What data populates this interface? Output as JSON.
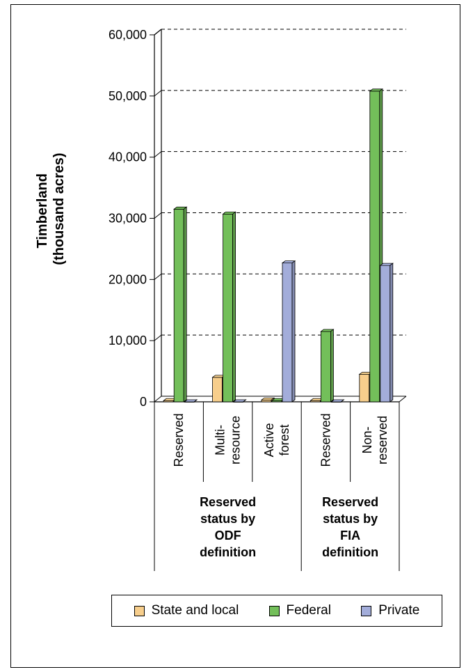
{
  "chart_data": {
    "type": "bar",
    "ylabel_line1": "Timberland",
    "ylabel_line2": "(thousand acres)",
    "ylim": [
      0,
      60000
    ],
    "yticks": [
      "0",
      "10,000",
      "20,000",
      "30,000",
      "40,000",
      "50,000",
      "60,000"
    ],
    "grid": true,
    "categories": [
      {
        "lines": [
          "Reserved"
        ]
      },
      {
        "lines": [
          "Multi-",
          "resource"
        ]
      },
      {
        "lines": [
          "Active",
          "forest"
        ]
      },
      {
        "lines": [
          "Reserved"
        ]
      },
      {
        "lines": [
          "Non-",
          "reserved"
        ]
      }
    ],
    "groups": [
      {
        "lines": [
          "Reserved",
          "status by",
          "ODF",
          "definition"
        ],
        "span": [
          0,
          2
        ]
      },
      {
        "lines": [
          "Reserved",
          "status by",
          "FIA",
          "definition"
        ],
        "span": [
          3,
          4
        ]
      }
    ],
    "series": [
      {
        "name": "State and local",
        "color": "#F7CE8C",
        "values": [
          200,
          4000,
          300,
          200,
          4500
        ]
      },
      {
        "name": "Federal",
        "color": "#73BF5A",
        "values": [
          31500,
          30700,
          200,
          11500,
          50800
        ]
      },
      {
        "name": "Private",
        "color": "#A3ADDA",
        "values": [
          0,
          0,
          22700,
          0,
          22300
        ]
      }
    ],
    "legend_position": "bottom"
  }
}
